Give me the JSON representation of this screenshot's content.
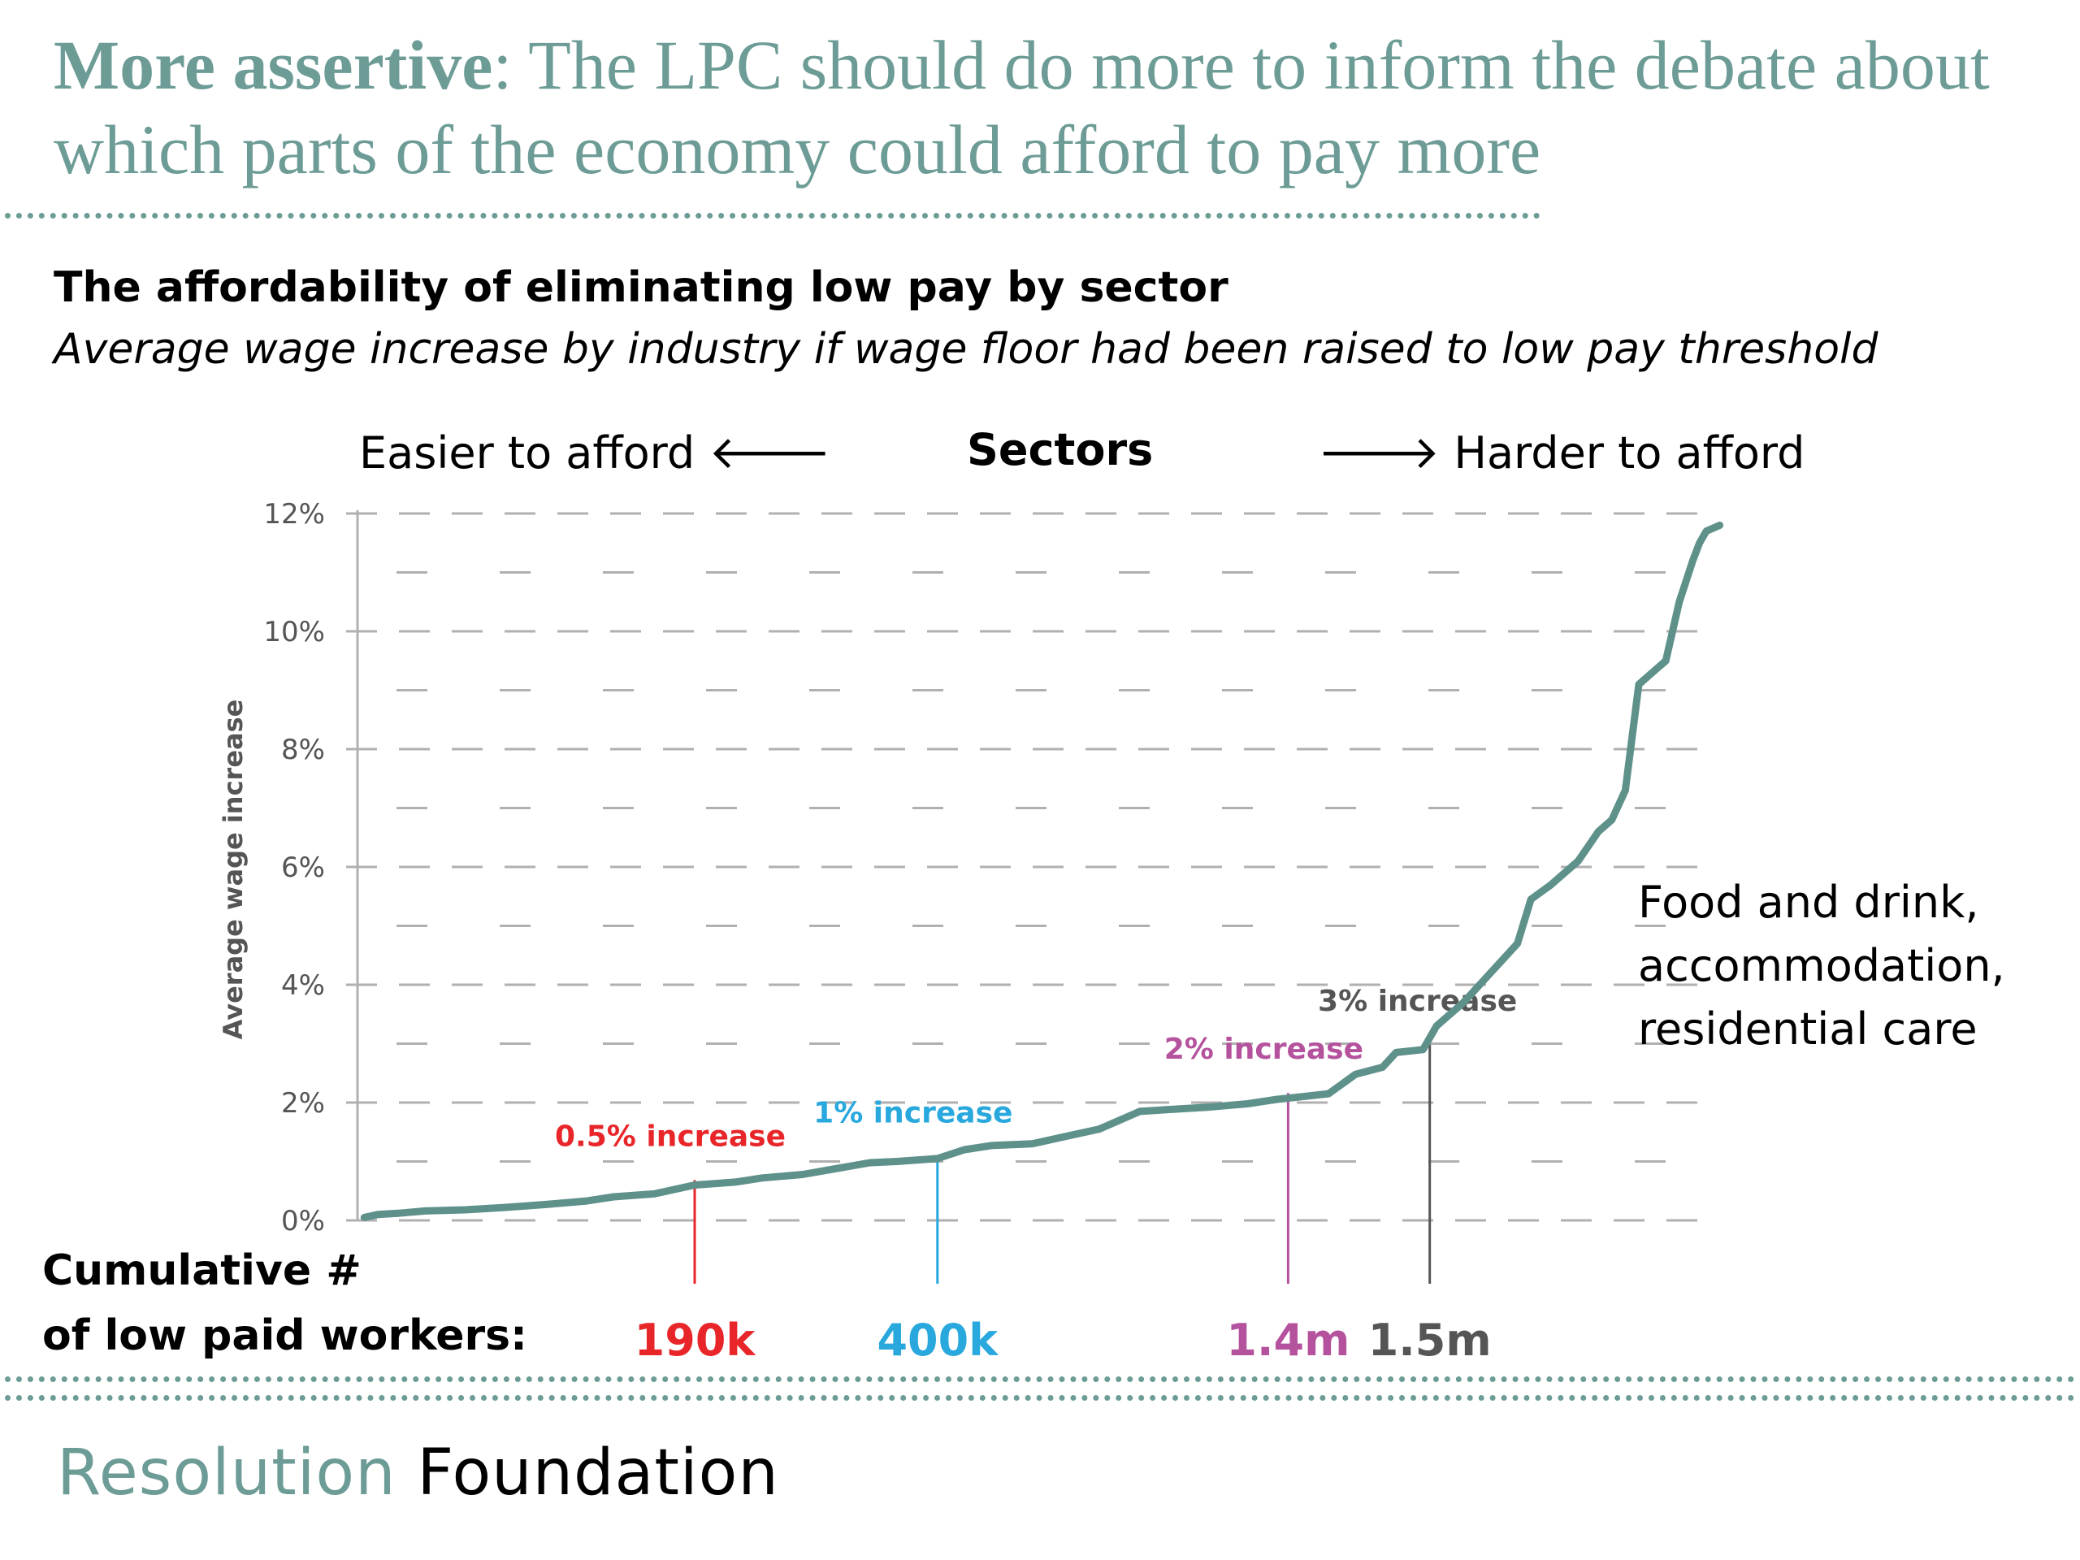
{
  "headline": {
    "bold": "More assertive",
    "rest": ": The LPC should do more to inform the debate about which parts of the economy could afford to pay more"
  },
  "colors": {
    "accent": "#6d9c96",
    "red": "#e8262a",
    "blue": "#29a8de",
    "magenta": "#b5529d",
    "dark": "#555555",
    "grid": "#b0b0b0",
    "line": "#5f918b"
  },
  "chart_data": {
    "type": "line",
    "title": "The affordability of eliminating low pay by sector",
    "subtitle": "Average wage increase by industry if wage floor had been raised to low pay threshold",
    "ylabel": "Average wage increase",
    "xlabel": "Sectors",
    "direction_left": "Easier to afford",
    "direction_right": "Harder to afford",
    "ylim": [
      0,
      12
    ],
    "xlim": [
      0,
      100
    ],
    "y_ticks": [
      "0%",
      "2%",
      "4%",
      "6%",
      "8%",
      "10%",
      "12%"
    ],
    "y_tick_values": [
      0,
      2,
      4,
      6,
      8,
      10,
      12
    ],
    "series": [
      {
        "name": "Average wage increase",
        "x": [
          0.5,
          1.5,
          3,
          5,
          8,
          11,
          14,
          17,
          19,
          22,
          25,
          28,
          30,
          33,
          36,
          38,
          40,
          43,
          45,
          47,
          50,
          53,
          55,
          58,
          60,
          63,
          66,
          68,
          70,
          72,
          74,
          76,
          77,
          79,
          80,
          82,
          84,
          86,
          87,
          88.5,
          89,
          90.5,
          92,
          93,
          94,
          95,
          97,
          98,
          99,
          99.5,
          100,
          101
        ],
        "y": [
          0.05,
          0.1,
          0.12,
          0.16,
          0.18,
          0.22,
          0.27,
          0.33,
          0.4,
          0.45,
          0.6,
          0.65,
          0.72,
          0.78,
          0.9,
          0.98,
          1.0,
          1.05,
          1.2,
          1.27,
          1.3,
          1.45,
          1.55,
          1.85,
          1.88,
          1.92,
          1.98,
          2.05,
          2.1,
          2.15,
          2.48,
          2.6,
          2.85,
          2.9,
          3.3,
          3.7,
          4.2,
          4.7,
          5.45,
          5.7,
          5.8,
          6.1,
          6.6,
          6.8,
          7.3,
          9.1,
          9.5,
          10.5,
          11.2,
          11.5,
          11.7,
          11.8
        ]
      }
    ],
    "markers": [
      {
        "label": "0.5% increase",
        "x": 25,
        "y": 0.6,
        "workers": "190k",
        "color": "#e8262a"
      },
      {
        "label": "1% increase",
        "x": 43,
        "y": 1.0,
        "workers": "400k",
        "color": "#29a8de"
      },
      {
        "label": "2% increase",
        "x": 69,
        "y": 2.08,
        "workers": "1.4m",
        "color": "#b5529d"
      },
      {
        "label": "3% increase",
        "x": 79.5,
        "y": 2.9,
        "workers": "1.5m",
        "color": "#555555"
      }
    ],
    "cumulative_label_line1": "Cumulative #",
    "cumulative_label_line2": "of low paid workers:",
    "callout": [
      "Food and drink,",
      "accommodation,",
      "residential care"
    ]
  },
  "brand": {
    "part1": "Resolution",
    "part2": "Foundation"
  }
}
